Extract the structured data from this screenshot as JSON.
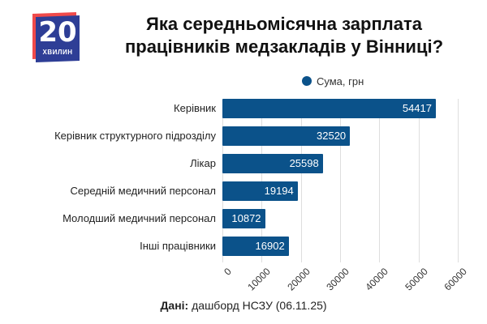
{
  "logo": {
    "number": "20",
    "word": "ХВИЛИН",
    "colors": {
      "front": "#2e3e96",
      "back": "#f04a4a"
    }
  },
  "header": {
    "title_line1": "Яка середньомісячна зарплата",
    "title_line2": "працівників медзакладів у Вінниці?"
  },
  "legend": {
    "label": "Сума, грн",
    "color": "#0b528a"
  },
  "source": {
    "label": "Дані:",
    "text": " дашборд НСЗУ (06.11.25)"
  },
  "chart_data": {
    "type": "bar",
    "orientation": "horizontal",
    "title": "Яка середньомісячна зарплата працівників медзакладів у Вінниці?",
    "categories": [
      "Керівник",
      "Керівник структурного підрозділу",
      "Лікар",
      "Середній медичний персонал",
      "Молодший медичний персонал",
      "Інші працівники"
    ],
    "series": [
      {
        "name": "Сума, грн",
        "values": [
          54417,
          32520,
          25598,
          19194,
          10872,
          16902
        ],
        "color": "#0b528a"
      }
    ],
    "value_labels": [
      "54417",
      "32520",
      "25598",
      "19194",
      "10872",
      "16902"
    ],
    "xlabel": "",
    "ylabel": "",
    "xlim": [
      0,
      60000
    ],
    "x_ticks": [
      "0",
      "10000",
      "20000",
      "30000",
      "40000",
      "50000",
      "60000"
    ],
    "grid": "vertical",
    "legend_position": "top"
  }
}
